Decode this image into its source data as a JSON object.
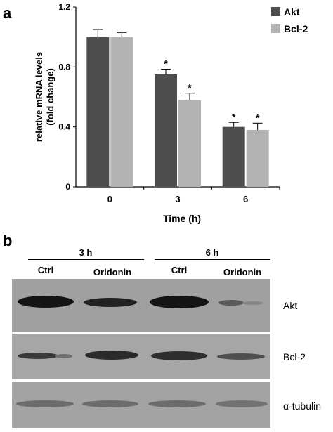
{
  "panel_a": {
    "letter": "a"
  },
  "panel_b": {
    "letter": "b",
    "groups": [
      "3 h",
      "6 h"
    ],
    "lanes": [
      "Ctrl",
      "Oridonin",
      "Ctrl",
      "Oridonin"
    ],
    "rows": [
      "Akt",
      "Bcl-2",
      "α-tubulin"
    ]
  },
  "chart_data": {
    "type": "bar",
    "categories": [
      "0",
      "3",
      "6"
    ],
    "series": [
      {
        "name": "Akt",
        "values": [
          1.0,
          0.75,
          0.4
        ],
        "errors": [
          0.05,
          0.035,
          0.03
        ],
        "color": "#4d4d4d"
      },
      {
        "name": "Bcl-2",
        "values": [
          1.0,
          0.58,
          0.38
        ],
        "errors": [
          0.03,
          0.045,
          0.045
        ],
        "color": "#b3b3b3"
      }
    ],
    "significance": [
      {
        "category": "3",
        "series": "Akt",
        "mark": "*"
      },
      {
        "category": "3",
        "series": "Bcl-2",
        "mark": "*"
      },
      {
        "category": "6",
        "series": "Akt",
        "mark": "*"
      },
      {
        "category": "6",
        "series": "Bcl-2",
        "mark": "*"
      }
    ],
    "title": "",
    "xlabel": "Time (h)",
    "ylabel": "relative mRNA levels (fold change)",
    "ylabel_lines": [
      "relative mRNA levels",
      "(fold change)"
    ],
    "ylim": [
      0,
      1.2
    ],
    "yticks": [
      "0",
      "0.4",
      "0.8",
      "1.2"
    ],
    "grid": false,
    "legend": "top-right"
  }
}
